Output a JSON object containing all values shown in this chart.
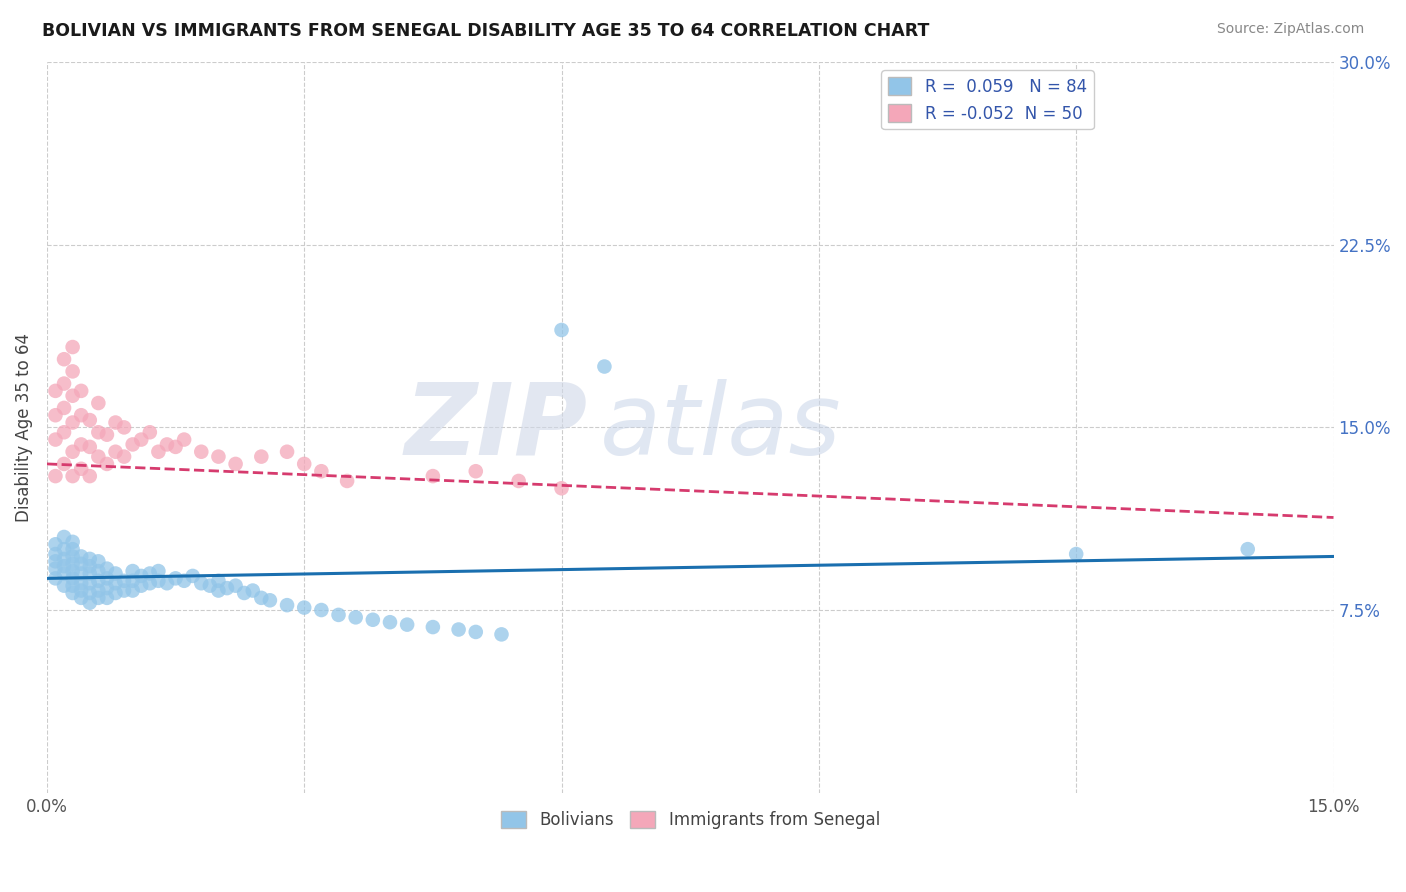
{
  "title": "BOLIVIAN VS IMMIGRANTS FROM SENEGAL DISABILITY AGE 35 TO 64 CORRELATION CHART",
  "source": "Source: ZipAtlas.com",
  "ylabel": "Disability Age 35 to 64",
  "xlim": [
    0.0,
    0.15
  ],
  "ylim": [
    0.0,
    0.3
  ],
  "legend_r_blue": "0.059",
  "legend_n_blue": "84",
  "legend_r_pink": "-0.052",
  "legend_n_pink": "50",
  "blue_color": "#92c5e8",
  "pink_color": "#f4a7b9",
  "blue_line_color": "#1a6faf",
  "pink_line_color": "#d63b6e",
  "watermark_zip": "ZIP",
  "watermark_atlas": "atlas",
  "blue_line_x0": 0.0,
  "blue_line_y0": 0.088,
  "blue_line_x1": 0.15,
  "blue_line_y1": 0.097,
  "pink_line_x0": 0.0,
  "pink_line_y0": 0.135,
  "pink_line_x1": 0.15,
  "pink_line_y1": 0.113,
  "blue_scatter_x": [
    0.001,
    0.001,
    0.001,
    0.001,
    0.001,
    0.002,
    0.002,
    0.002,
    0.002,
    0.002,
    0.002,
    0.003,
    0.003,
    0.003,
    0.003,
    0.003,
    0.003,
    0.003,
    0.003,
    0.004,
    0.004,
    0.004,
    0.004,
    0.004,
    0.004,
    0.005,
    0.005,
    0.005,
    0.005,
    0.005,
    0.005,
    0.006,
    0.006,
    0.006,
    0.006,
    0.006,
    0.007,
    0.007,
    0.007,
    0.007,
    0.008,
    0.008,
    0.008,
    0.009,
    0.009,
    0.01,
    0.01,
    0.01,
    0.011,
    0.011,
    0.012,
    0.012,
    0.013,
    0.013,
    0.014,
    0.015,
    0.016,
    0.017,
    0.018,
    0.019,
    0.02,
    0.02,
    0.021,
    0.022,
    0.023,
    0.024,
    0.025,
    0.026,
    0.028,
    0.03,
    0.032,
    0.034,
    0.036,
    0.038,
    0.04,
    0.042,
    0.045,
    0.048,
    0.05,
    0.053,
    0.06,
    0.065,
    0.12,
    0.14
  ],
  "blue_scatter_y": [
    0.088,
    0.092,
    0.095,
    0.098,
    0.102,
    0.085,
    0.09,
    0.093,
    0.096,
    0.1,
    0.105,
    0.082,
    0.085,
    0.088,
    0.091,
    0.094,
    0.097,
    0.1,
    0.103,
    0.08,
    0.083,
    0.086,
    0.09,
    0.094,
    0.097,
    0.078,
    0.082,
    0.086,
    0.09,
    0.093,
    0.096,
    0.08,
    0.083,
    0.087,
    0.091,
    0.095,
    0.08,
    0.084,
    0.088,
    0.092,
    0.082,
    0.086,
    0.09,
    0.083,
    0.087,
    0.083,
    0.087,
    0.091,
    0.085,
    0.089,
    0.086,
    0.09,
    0.087,
    0.091,
    0.086,
    0.088,
    0.087,
    0.089,
    0.086,
    0.085,
    0.083,
    0.087,
    0.084,
    0.085,
    0.082,
    0.083,
    0.08,
    0.079,
    0.077,
    0.076,
    0.075,
    0.073,
    0.072,
    0.071,
    0.07,
    0.069,
    0.068,
    0.067,
    0.066,
    0.065,
    0.19,
    0.175,
    0.098,
    0.1
  ],
  "pink_scatter_x": [
    0.001,
    0.001,
    0.001,
    0.001,
    0.002,
    0.002,
    0.002,
    0.002,
    0.002,
    0.003,
    0.003,
    0.003,
    0.003,
    0.003,
    0.003,
    0.004,
    0.004,
    0.004,
    0.004,
    0.005,
    0.005,
    0.005,
    0.006,
    0.006,
    0.006,
    0.007,
    0.007,
    0.008,
    0.008,
    0.009,
    0.009,
    0.01,
    0.011,
    0.012,
    0.013,
    0.014,
    0.015,
    0.016,
    0.018,
    0.02,
    0.022,
    0.025,
    0.028,
    0.03,
    0.032,
    0.035,
    0.045,
    0.05,
    0.055,
    0.06
  ],
  "pink_scatter_y": [
    0.13,
    0.145,
    0.155,
    0.165,
    0.135,
    0.148,
    0.158,
    0.168,
    0.178,
    0.13,
    0.14,
    0.152,
    0.163,
    0.173,
    0.183,
    0.133,
    0.143,
    0.155,
    0.165,
    0.13,
    0.142,
    0.153,
    0.138,
    0.148,
    0.16,
    0.135,
    0.147,
    0.14,
    0.152,
    0.138,
    0.15,
    0.143,
    0.145,
    0.148,
    0.14,
    0.143,
    0.142,
    0.145,
    0.14,
    0.138,
    0.135,
    0.138,
    0.14,
    0.135,
    0.132,
    0.128,
    0.13,
    0.132,
    0.128,
    0.125
  ]
}
